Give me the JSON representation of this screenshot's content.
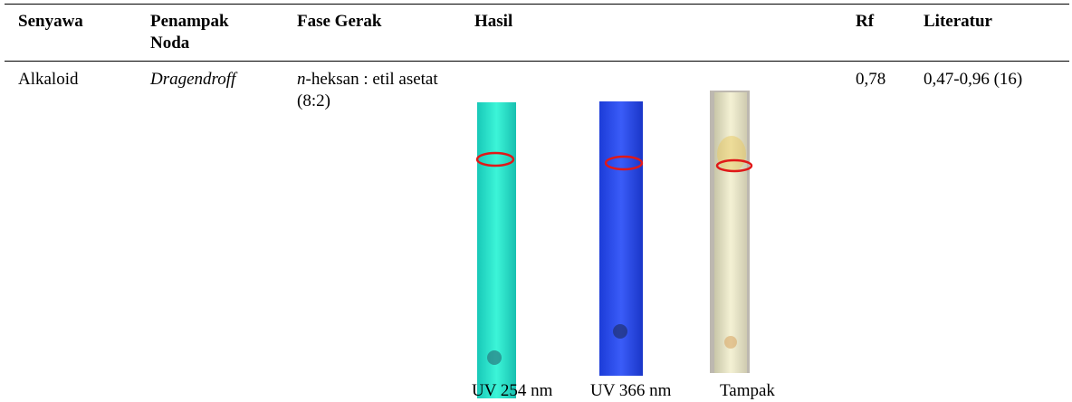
{
  "table": {
    "header": [
      "Senyawa",
      "Penampak Noda",
      "Fase Gerak",
      "Hasil",
      "Rf",
      "Literatur"
    ],
    "rows": [
      {
        "senyawa": "Alkaloid",
        "penampak": "Dragendroff",
        "fase_prefix": "n",
        "fase_rest": "-heksan : etil asetat (8:2)",
        "rf": "0,78",
        "literatur": "0,47-0,96 (16)",
        "images": [
          "UV 254 nm",
          "UV 366 nm",
          "Tampak"
        ]
      }
    ]
  }
}
